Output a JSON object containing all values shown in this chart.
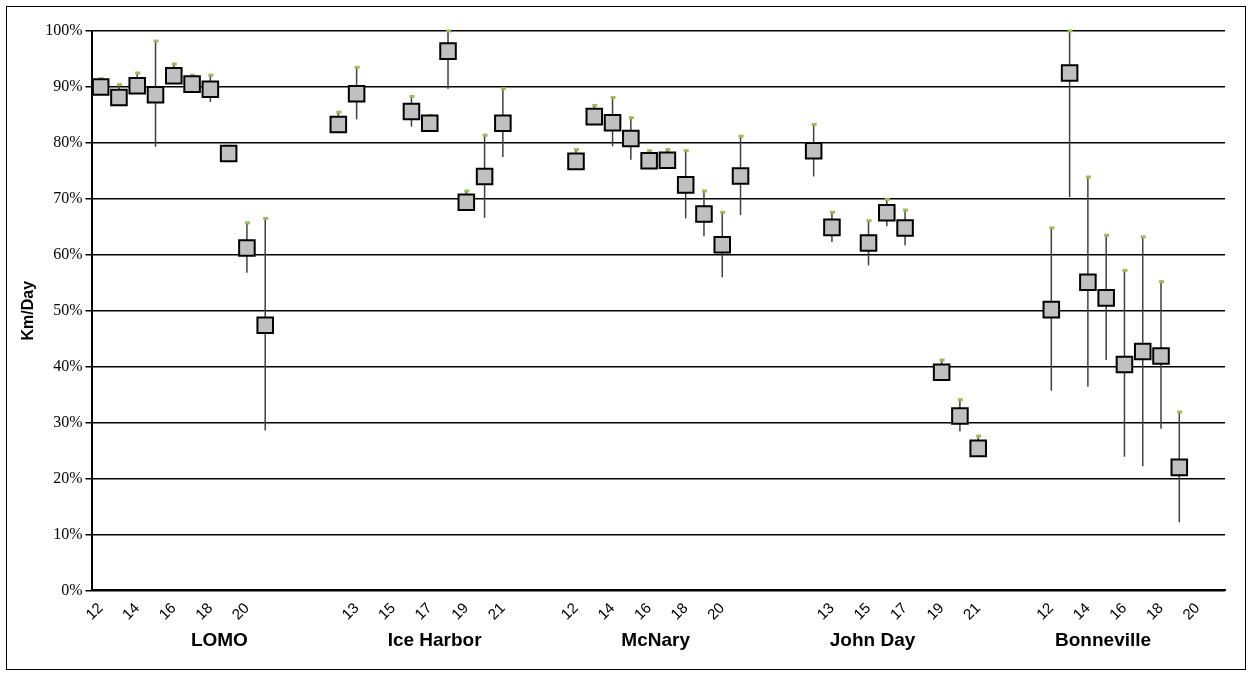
{
  "chart_data": {
    "type": "scatter",
    "ylabel": "Km/Day",
    "categories": [
      "12",
      null,
      "14",
      null,
      "16",
      null,
      "18",
      null,
      "20",
      null,
      null,
      null,
      null,
      null,
      "13",
      null,
      "15",
      null,
      "17",
      null,
      "19",
      null,
      "21",
      null,
      null,
      null,
      "12",
      null,
      "14",
      null,
      "16",
      null,
      "18",
      null,
      "20",
      null,
      null,
      null,
      null,
      null,
      "13",
      null,
      "15",
      null,
      "17",
      null,
      "19",
      null,
      "21",
      null,
      null,
      null,
      "12",
      null,
      "14",
      null,
      "16",
      null,
      "18",
      null,
      "20",
      null
    ],
    "series": [
      {
        "color": "#c0c0c0",
        "values": [
          90.0,
          88.1,
          90.2,
          88.6,
          92.0,
          90.5,
          89.6,
          78.1,
          61.2,
          47.4,
          null,
          null,
          null,
          83.3,
          88.8,
          null,
          null,
          85.6,
          83.5,
          96.4,
          69.4,
          74.0,
          83.5,
          null,
          null,
          null,
          76.7,
          84.7,
          83.6,
          80.8,
          76.8,
          76.9,
          72.5,
          67.3,
          61.8,
          74.1,
          null,
          null,
          null,
          78.6,
          64.9,
          null,
          62.1,
          67.5,
          64.8,
          null,
          39.0,
          31.2,
          25.4,
          null,
          null,
          null,
          50.2,
          92.5,
          55.1,
          52.3,
          40.4,
          42.7,
          41.9,
          22.0,
          null,
          null
        ],
        "errors": [
          [
            89.0,
            91.5
          ],
          [
            87.1,
            90.4
          ],
          [
            89.2,
            92.5
          ],
          [
            79.3,
            98.2
          ],
          [
            91.0,
            94.1
          ],
          [
            89.5,
            92.1
          ],
          [
            87.3,
            92.1
          ],
          [
            77.1,
            79.4
          ],
          [
            56.8,
            65.7
          ],
          [
            28.6,
            66.5
          ],
          null,
          null,
          null,
          [
            82.3,
            85.5
          ],
          [
            84.2,
            93.5
          ],
          null,
          null,
          [
            82.9,
            88.3
          ],
          [
            82.5,
            84.9
          ],
          [
            89.7,
            100
          ],
          [
            68.4,
            71.4
          ],
          [
            66.6,
            81.4
          ],
          [
            77.5,
            89.7
          ],
          null,
          null,
          null,
          [
            75.7,
            78.8
          ],
          [
            83.7,
            86.7
          ],
          [
            79.4,
            88.1
          ],
          [
            77.0,
            84.5
          ],
          [
            75.8,
            78.6
          ],
          [
            75.9,
            78.8
          ],
          [
            66.5,
            78.6
          ],
          [
            63.3,
            71.4
          ],
          [
            56.0,
            67.6
          ],
          [
            67.1,
            81.2
          ],
          null,
          null,
          null,
          [
            74.0,
            83.3
          ],
          [
            62.3,
            67.6
          ],
          null,
          [
            58.1,
            66.1
          ],
          [
            65.1,
            69.9
          ],
          [
            61.7,
            68.0
          ],
          null,
          [
            38.0,
            41.2
          ],
          [
            28.4,
            34.1
          ],
          [
            24.4,
            27.6
          ],
          null,
          null,
          null,
          [
            35.7,
            64.8
          ],
          [
            70.3,
            100
          ],
          [
            36.4,
            73.9
          ],
          [
            41.2,
            63.5
          ],
          [
            23.9,
            57.2
          ],
          [
            22.2,
            63.2
          ],
          [
            28.9,
            55.2
          ],
          [
            12.2,
            31.9
          ],
          null,
          null
        ]
      }
    ],
    "ylim": [
      0,
      100
    ],
    "yticks": [
      {
        "value": 0,
        "label": "0%"
      },
      {
        "value": 10,
        "label": "10%"
      },
      {
        "value": 20,
        "label": "20%"
      },
      {
        "value": 30,
        "label": "30%"
      },
      {
        "value": 40,
        "label": "40%"
      },
      {
        "value": 50,
        "label": "50%"
      },
      {
        "value": 60,
        "label": "60%"
      },
      {
        "value": 70,
        "label": "70%"
      },
      {
        "value": 80,
        "label": "80%"
      },
      {
        "value": 90,
        "label": "90%"
      },
      {
        "value": 100,
        "label": "100%"
      }
    ],
    "grid": "y",
    "legend": false,
    "marker": "square",
    "annotations": [
      "LOMO",
      "Ice Harbor",
      "McNary",
      "John Day",
      "Bonneville"
    ]
  }
}
